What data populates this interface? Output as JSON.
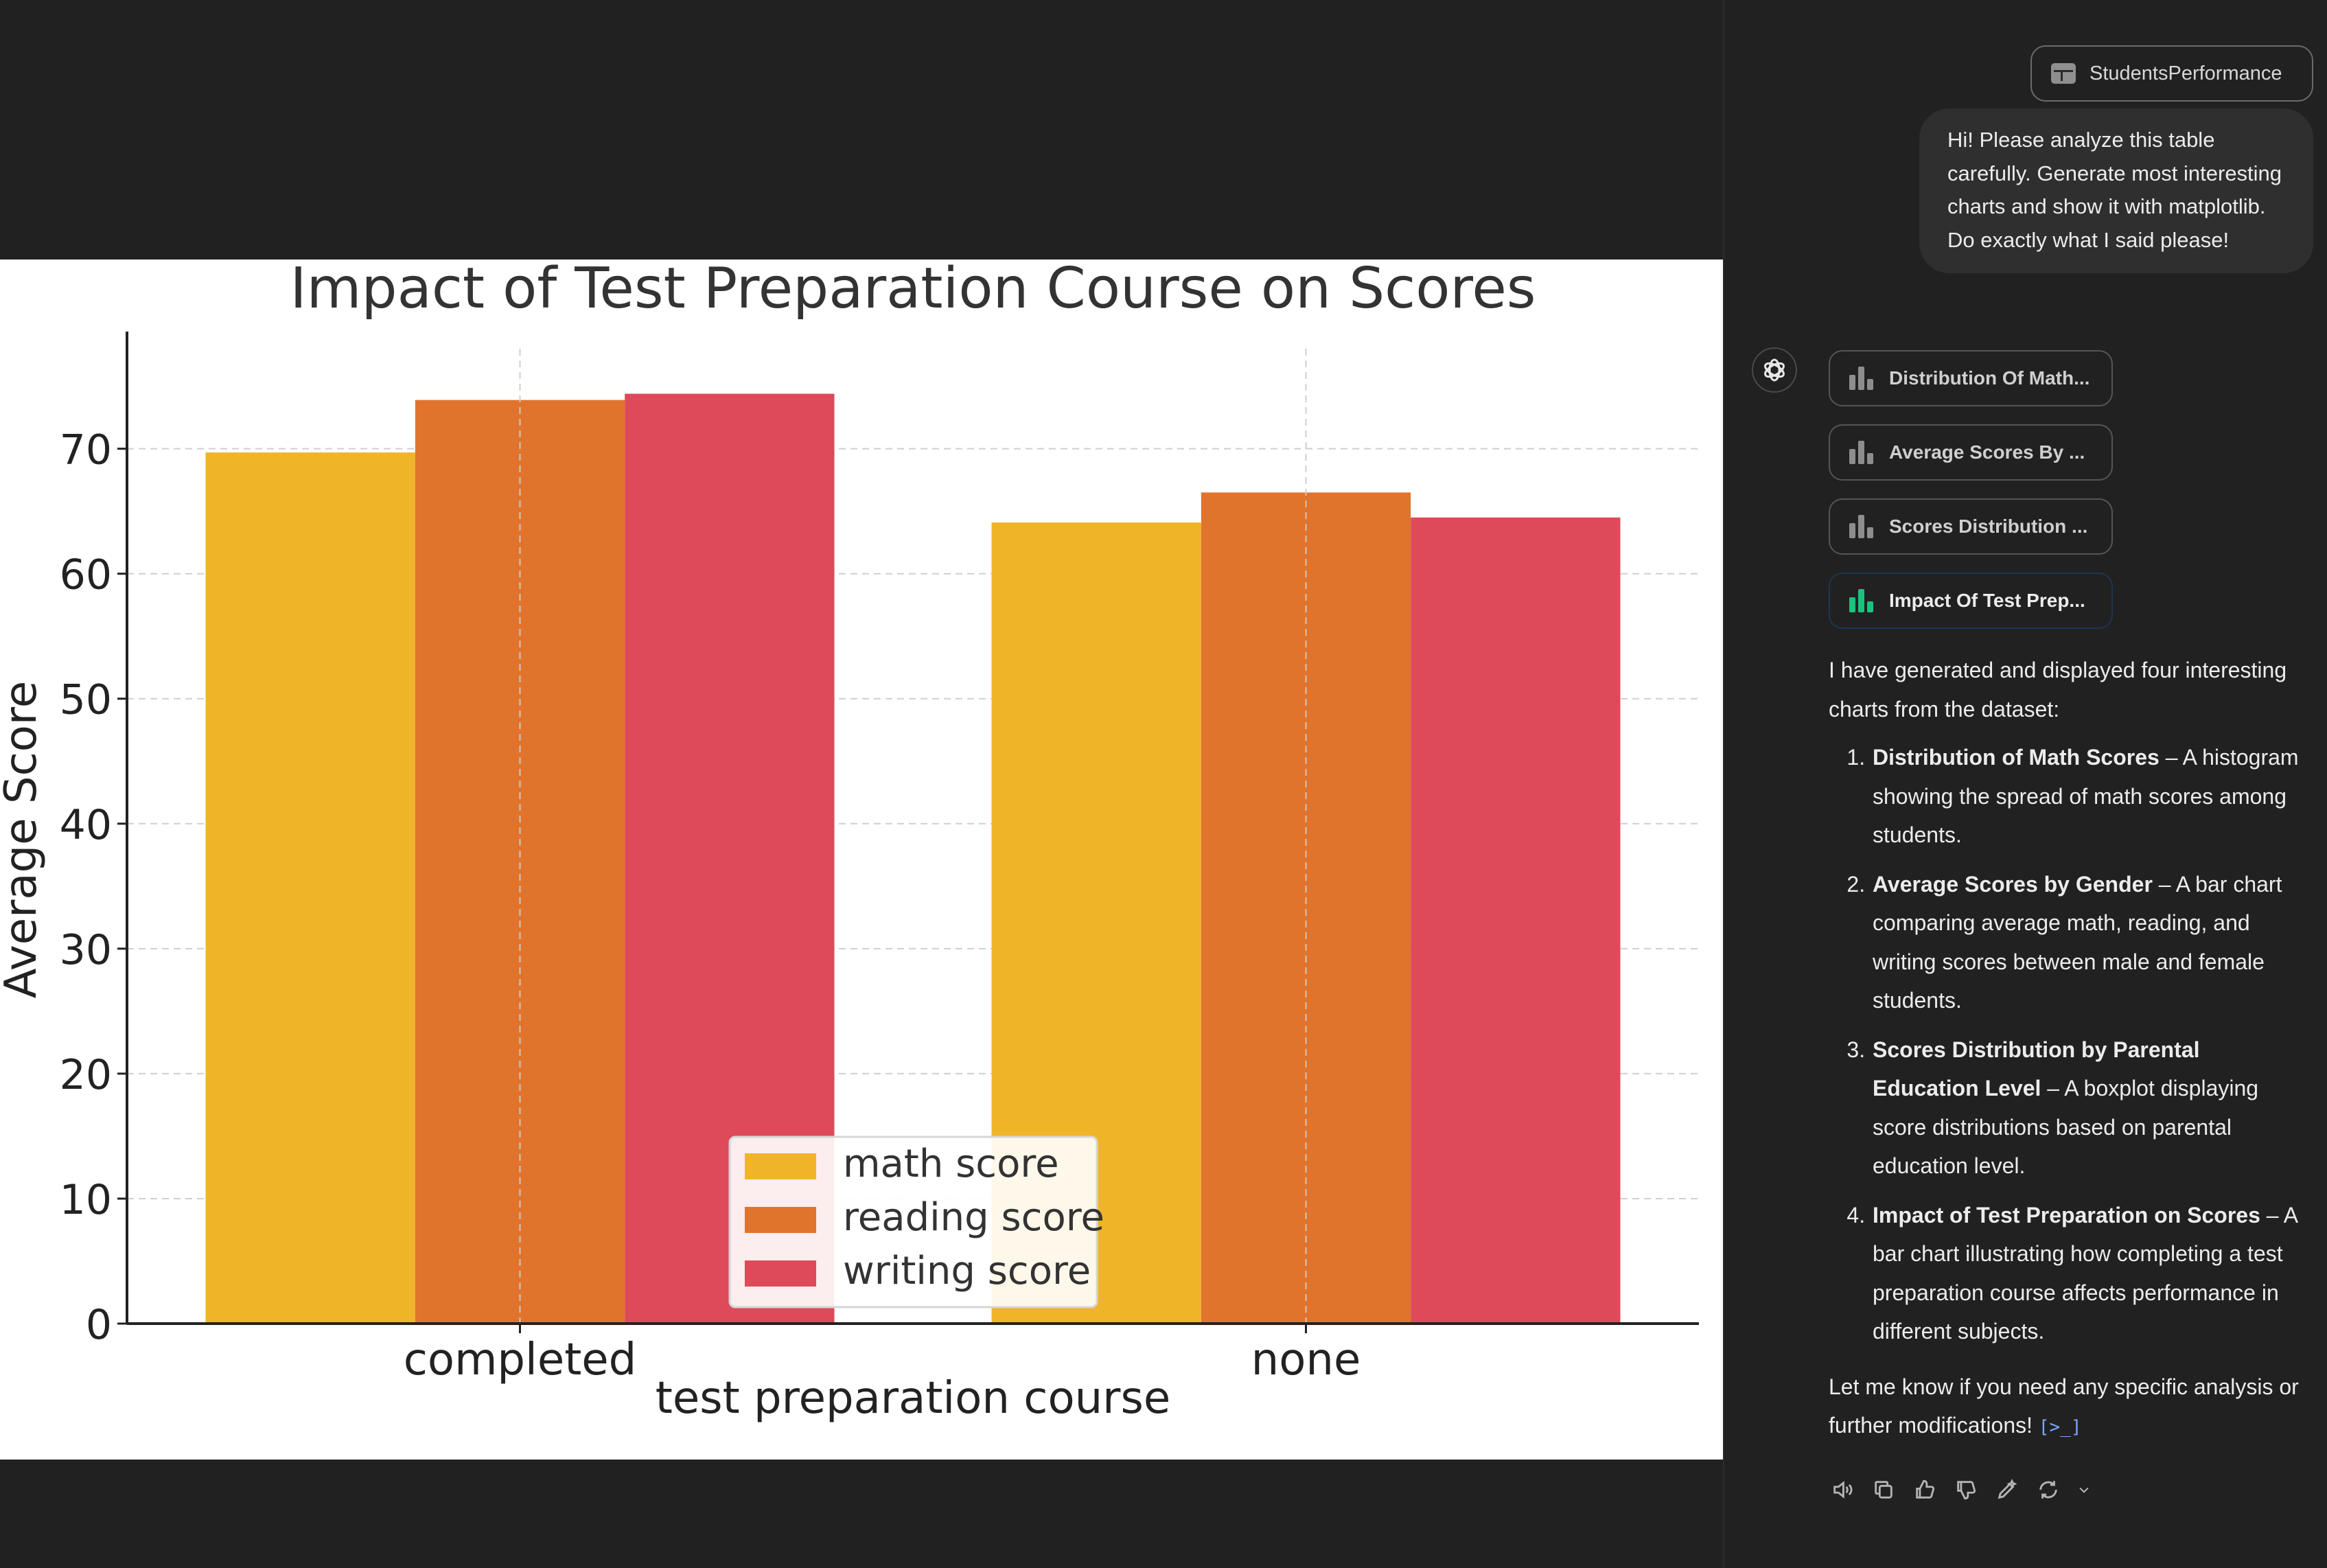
{
  "chart_data": {
    "type": "bar",
    "title": "Impact of Test Preparation Course on Scores",
    "xlabel": "test preparation course",
    "ylabel": "Average Score",
    "categories": [
      "completed",
      "none"
    ],
    "series": [
      {
        "name": "math score",
        "color": "#f0b429",
        "values": [
          69.7,
          64.1
        ]
      },
      {
        "name": "reading score",
        "color": "#e0742c",
        "values": [
          73.9,
          66.5
        ]
      },
      {
        "name": "writing score",
        "color": "#de4a5a",
        "values": [
          74.4,
          64.5
        ]
      }
    ],
    "ylim": [
      0,
      78
    ],
    "yticks": [
      "0",
      "10",
      "20",
      "30",
      "40",
      "50",
      "60",
      "70"
    ],
    "grid": true,
    "legend_position": "lower-center"
  },
  "chat": {
    "file_chip": "StudentsPerformance",
    "user_message": "Hi! Please analyze this table carefully. Generate most interesting charts and show it with matplotlib. Do exactly what I said please!",
    "chart_chips": [
      {
        "label": "Distribution Of Math...",
        "active": false
      },
      {
        "label": "Average Scores By ...",
        "active": false
      },
      {
        "label": "Scores Distribution ...",
        "active": false
      },
      {
        "label": "Impact Of Test Prep...",
        "active": true
      }
    ],
    "intro": "I have generated and displayed four interesting charts from the dataset:",
    "items": [
      {
        "title": "Distribution of Math Scores",
        "text": " – A histogram showing the spread of math scores among students."
      },
      {
        "title": "Average Scores by Gender",
        "text": " – A bar chart comparing average math, reading, and writing scores between male and female students."
      },
      {
        "title": "Scores Distribution by Parental Education Level",
        "text": " – A boxplot displaying score distributions based on parental education level."
      },
      {
        "title": "Impact of Test Preparation on Scores",
        "text": " – A bar chart illustrating how completing a test preparation course affects performance in different subjects."
      }
    ],
    "outro": "Let me know if you need any specific analysis or further modifications!",
    "code_icon": "[>_]",
    "actions": [
      "read-aloud-icon",
      "copy-icon",
      "thumbs-up-icon",
      "thumbs-down-icon",
      "edit-icon",
      "regenerate-icon"
    ]
  }
}
